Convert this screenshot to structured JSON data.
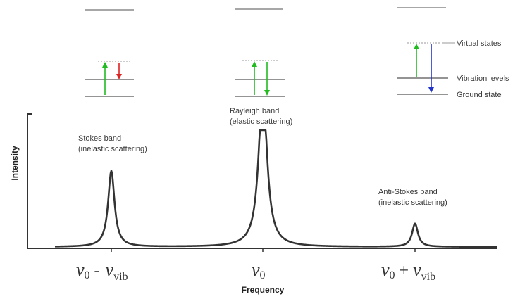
{
  "energy_labels": {
    "virtual": "Virtual states",
    "vibration": "Vibration levels",
    "ground": "Ground state"
  },
  "bands": {
    "stokes": {
      "name": "Stokes band",
      "type": "(inelastic scattering)"
    },
    "rayleigh": {
      "name": "Rayleigh band",
      "type": "(elastic scattering)"
    },
    "anti_stokes": {
      "name": "Anti-Stokes band",
      "type": "(inelastic scattering)"
    }
  },
  "axes": {
    "ylabel": "Intensity",
    "xlabel": "Frequency"
  },
  "ticks": {
    "nu": "ν",
    "zero": "0",
    "vib": "vib",
    "minus": "-",
    "plus": "+"
  },
  "colors": {
    "excitation": "#22bb22",
    "stokes_emission": "#dd2222",
    "anti_stokes_emission": "#2233cc",
    "level": "#555555",
    "virtual": "#999999",
    "curve": "#333333"
  }
}
